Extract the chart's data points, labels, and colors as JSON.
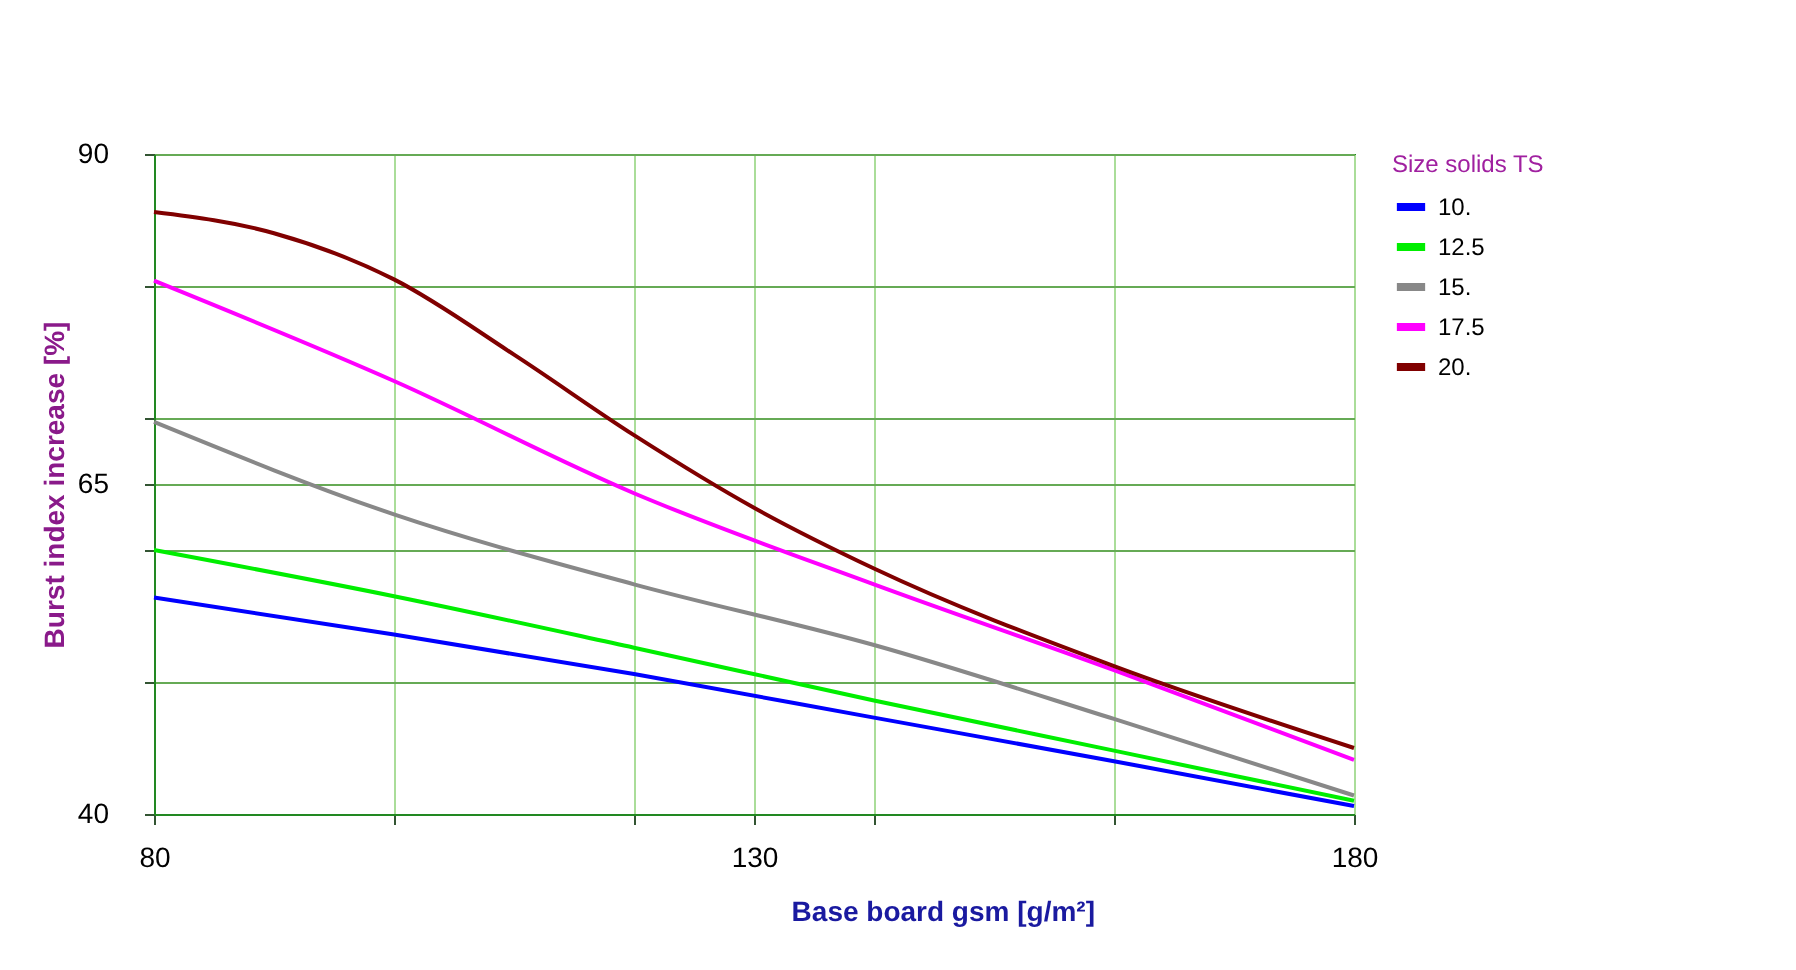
{
  "chart_data": {
    "type": "line",
    "xlabel": "Base board gsm [g/m²]",
    "ylabel": "Burst index increase [%]",
    "legend_title": "Size solids TS",
    "xlim": [
      80,
      180
    ],
    "xticks": [
      80,
      {
        "value": 100,
        "label": null
      },
      {
        "value": 120,
        "label": null
      },
      130,
      {
        "value": 140,
        "label": null
      },
      {
        "value": 160,
        "label": null
      },
      180
    ],
    "ylim": [
      40,
      90
    ],
    "yticks": [
      40,
      {
        "value": 50,
        "label": null
      },
      {
        "value": 60,
        "label": null
      },
      65,
      {
        "value": 70,
        "label": null
      },
      {
        "value": 80,
        "label": null
      },
      90
    ],
    "grid": true,
    "legend": "top right",
    "marker": "none",
    "line_style": "solid",
    "series": [
      {
        "name": "10.",
        "color": "#0000ff",
        "x": [
          80,
          100,
          120,
          140,
          160,
          180
        ],
        "values": [
          56.4,
          53.6,
          50.6,
          47.3,
          44,
          40.6
        ]
      },
      {
        "name": "12.5",
        "color": "#00ee00",
        "x": [
          80,
          100,
          120,
          140,
          160,
          180
        ],
        "values": [
          60,
          56.5,
          52.6,
          48.6,
          44.8,
          41
        ]
      },
      {
        "name": "15.",
        "color": "#888888",
        "x": [
          80,
          100,
          120,
          140,
          160,
          180
        ],
        "values": [
          69.7,
          62.7,
          57.4,
          52.8,
          47.2,
          41.4
        ]
      },
      {
        "name": "17.5",
        "color": "#ff00ff",
        "x": [
          80,
          100,
          120,
          140,
          160,
          180
        ],
        "values": [
          80.4,
          72.8,
          64.3,
          57.4,
          50.9,
          44.1
        ]
      },
      {
        "name": "20.",
        "color": "#800000",
        "x": [
          80,
          90,
          100,
          110,
          120,
          130,
          140,
          160,
          180
        ],
        "values": [
          85.6,
          84,
          80.5,
          74.8,
          68.7,
          63.2,
          58.6,
          51.2,
          45
        ]
      }
    ]
  }
}
